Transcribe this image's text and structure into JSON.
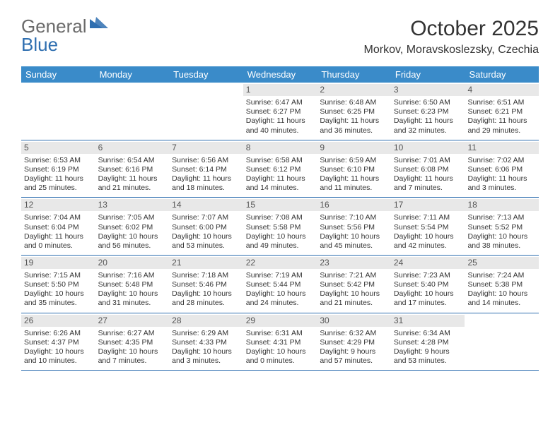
{
  "logo": {
    "text1": "General",
    "text2": "Blue",
    "text1_color": "#6a6a6a",
    "text2_color": "#2f6fb0",
    "tri_color": "#2f6fb0"
  },
  "header": {
    "month_title": "October 2025",
    "subtitle": "Morkov, Moravskoslezsky, Czechia"
  },
  "colors": {
    "header_bg": "#3a8bc9",
    "header_fg": "#ffffff",
    "daynum_bg": "#e8e8e8",
    "week_border": "#2f6fb0",
    "text": "#333333"
  },
  "days_of_week": [
    "Sunday",
    "Monday",
    "Tuesday",
    "Wednesday",
    "Thursday",
    "Friday",
    "Saturday"
  ],
  "weeks": [
    [
      {
        "empty": true
      },
      {
        "empty": true
      },
      {
        "empty": true
      },
      {
        "num": "1",
        "sunrise": "Sunrise: 6:47 AM",
        "sunset": "Sunset: 6:27 PM",
        "day1": "Daylight: 11 hours",
        "day2": "and 40 minutes."
      },
      {
        "num": "2",
        "sunrise": "Sunrise: 6:48 AM",
        "sunset": "Sunset: 6:25 PM",
        "day1": "Daylight: 11 hours",
        "day2": "and 36 minutes."
      },
      {
        "num": "3",
        "sunrise": "Sunrise: 6:50 AM",
        "sunset": "Sunset: 6:23 PM",
        "day1": "Daylight: 11 hours",
        "day2": "and 32 minutes."
      },
      {
        "num": "4",
        "sunrise": "Sunrise: 6:51 AM",
        "sunset": "Sunset: 6:21 PM",
        "day1": "Daylight: 11 hours",
        "day2": "and 29 minutes."
      }
    ],
    [
      {
        "num": "5",
        "sunrise": "Sunrise: 6:53 AM",
        "sunset": "Sunset: 6:19 PM",
        "day1": "Daylight: 11 hours",
        "day2": "and 25 minutes."
      },
      {
        "num": "6",
        "sunrise": "Sunrise: 6:54 AM",
        "sunset": "Sunset: 6:16 PM",
        "day1": "Daylight: 11 hours",
        "day2": "and 21 minutes."
      },
      {
        "num": "7",
        "sunrise": "Sunrise: 6:56 AM",
        "sunset": "Sunset: 6:14 PM",
        "day1": "Daylight: 11 hours",
        "day2": "and 18 minutes."
      },
      {
        "num": "8",
        "sunrise": "Sunrise: 6:58 AM",
        "sunset": "Sunset: 6:12 PM",
        "day1": "Daylight: 11 hours",
        "day2": "and 14 minutes."
      },
      {
        "num": "9",
        "sunrise": "Sunrise: 6:59 AM",
        "sunset": "Sunset: 6:10 PM",
        "day1": "Daylight: 11 hours",
        "day2": "and 11 minutes."
      },
      {
        "num": "10",
        "sunrise": "Sunrise: 7:01 AM",
        "sunset": "Sunset: 6:08 PM",
        "day1": "Daylight: 11 hours",
        "day2": "and 7 minutes."
      },
      {
        "num": "11",
        "sunrise": "Sunrise: 7:02 AM",
        "sunset": "Sunset: 6:06 PM",
        "day1": "Daylight: 11 hours",
        "day2": "and 3 minutes."
      }
    ],
    [
      {
        "num": "12",
        "sunrise": "Sunrise: 7:04 AM",
        "sunset": "Sunset: 6:04 PM",
        "day1": "Daylight: 11 hours",
        "day2": "and 0 minutes."
      },
      {
        "num": "13",
        "sunrise": "Sunrise: 7:05 AM",
        "sunset": "Sunset: 6:02 PM",
        "day1": "Daylight: 10 hours",
        "day2": "and 56 minutes."
      },
      {
        "num": "14",
        "sunrise": "Sunrise: 7:07 AM",
        "sunset": "Sunset: 6:00 PM",
        "day1": "Daylight: 10 hours",
        "day2": "and 53 minutes."
      },
      {
        "num": "15",
        "sunrise": "Sunrise: 7:08 AM",
        "sunset": "Sunset: 5:58 PM",
        "day1": "Daylight: 10 hours",
        "day2": "and 49 minutes."
      },
      {
        "num": "16",
        "sunrise": "Sunrise: 7:10 AM",
        "sunset": "Sunset: 5:56 PM",
        "day1": "Daylight: 10 hours",
        "day2": "and 45 minutes."
      },
      {
        "num": "17",
        "sunrise": "Sunrise: 7:11 AM",
        "sunset": "Sunset: 5:54 PM",
        "day1": "Daylight: 10 hours",
        "day2": "and 42 minutes."
      },
      {
        "num": "18",
        "sunrise": "Sunrise: 7:13 AM",
        "sunset": "Sunset: 5:52 PM",
        "day1": "Daylight: 10 hours",
        "day2": "and 38 minutes."
      }
    ],
    [
      {
        "num": "19",
        "sunrise": "Sunrise: 7:15 AM",
        "sunset": "Sunset: 5:50 PM",
        "day1": "Daylight: 10 hours",
        "day2": "and 35 minutes."
      },
      {
        "num": "20",
        "sunrise": "Sunrise: 7:16 AM",
        "sunset": "Sunset: 5:48 PM",
        "day1": "Daylight: 10 hours",
        "day2": "and 31 minutes."
      },
      {
        "num": "21",
        "sunrise": "Sunrise: 7:18 AM",
        "sunset": "Sunset: 5:46 PM",
        "day1": "Daylight: 10 hours",
        "day2": "and 28 minutes."
      },
      {
        "num": "22",
        "sunrise": "Sunrise: 7:19 AM",
        "sunset": "Sunset: 5:44 PM",
        "day1": "Daylight: 10 hours",
        "day2": "and 24 minutes."
      },
      {
        "num": "23",
        "sunrise": "Sunrise: 7:21 AM",
        "sunset": "Sunset: 5:42 PM",
        "day1": "Daylight: 10 hours",
        "day2": "and 21 minutes."
      },
      {
        "num": "24",
        "sunrise": "Sunrise: 7:23 AM",
        "sunset": "Sunset: 5:40 PM",
        "day1": "Daylight: 10 hours",
        "day2": "and 17 minutes."
      },
      {
        "num": "25",
        "sunrise": "Sunrise: 7:24 AM",
        "sunset": "Sunset: 5:38 PM",
        "day1": "Daylight: 10 hours",
        "day2": "and 14 minutes."
      }
    ],
    [
      {
        "num": "26",
        "sunrise": "Sunrise: 6:26 AM",
        "sunset": "Sunset: 4:37 PM",
        "day1": "Daylight: 10 hours",
        "day2": "and 10 minutes."
      },
      {
        "num": "27",
        "sunrise": "Sunrise: 6:27 AM",
        "sunset": "Sunset: 4:35 PM",
        "day1": "Daylight: 10 hours",
        "day2": "and 7 minutes."
      },
      {
        "num": "28",
        "sunrise": "Sunrise: 6:29 AM",
        "sunset": "Sunset: 4:33 PM",
        "day1": "Daylight: 10 hours",
        "day2": "and 3 minutes."
      },
      {
        "num": "29",
        "sunrise": "Sunrise: 6:31 AM",
        "sunset": "Sunset: 4:31 PM",
        "day1": "Daylight: 10 hours",
        "day2": "and 0 minutes."
      },
      {
        "num": "30",
        "sunrise": "Sunrise: 6:32 AM",
        "sunset": "Sunset: 4:29 PM",
        "day1": "Daylight: 9 hours",
        "day2": "and 57 minutes."
      },
      {
        "num": "31",
        "sunrise": "Sunrise: 6:34 AM",
        "sunset": "Sunset: 4:28 PM",
        "day1": "Daylight: 9 hours",
        "day2": "and 53 minutes."
      },
      {
        "empty": true
      }
    ]
  ]
}
